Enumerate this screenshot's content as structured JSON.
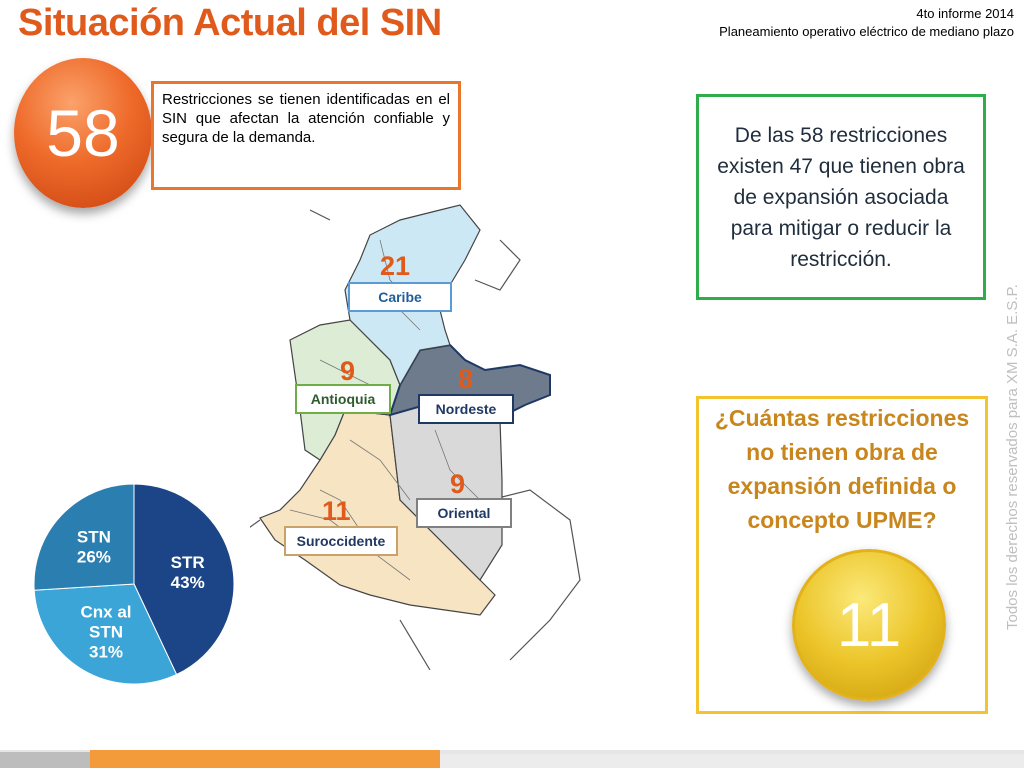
{
  "header": {
    "title": "Situación Actual del SIN",
    "line1": "4to informe 2014",
    "line2": "Planeamiento operativo eléctrico de mediano plazo"
  },
  "restrictions": {
    "count": "58",
    "description": "Restricciones se tienen identificadas en el SIN que afectan la atención confiable y segura de la demanda."
  },
  "info_box": {
    "text": "De las 58 restricciones existen 47 que tienen obra de expansión asociada para mitigar o reducir la restricción."
  },
  "question_box": {
    "question": "¿Cuántas restricciones no tienen obra de expansión definida o concepto UPME?",
    "answer": "11"
  },
  "side_note": "Todos los derechos reservados para XM S.A. E.S.P.",
  "regions": [
    {
      "name": "Caribe",
      "count": "21",
      "color": "#cde8f5",
      "border": "#5b9bd5"
    },
    {
      "name": "Antioquia",
      "count": "9",
      "color": "#dcecd5",
      "border": "#70ad47"
    },
    {
      "name": "Nordeste",
      "count": "8",
      "color": "#6d7b8d",
      "border": "#1f3864"
    },
    {
      "name": "Oriental",
      "count": "9",
      "color": "#d9d9d9",
      "border": "#808080"
    },
    {
      "name": "Suroccidente",
      "count": "11",
      "color": "#f6e4c3",
      "border": "#c9a26b"
    }
  ],
  "chart_data": {
    "type": "pie",
    "categories": [
      "STR",
      "Cnx al STN",
      "STN"
    ],
    "values": [
      43,
      31,
      26
    ],
    "labels": [
      "STR\n43%",
      "Cnx al\nSTN\n31%",
      "STN\n26%"
    ],
    "colors": [
      "#1c4587",
      "#3aa5d6",
      "#2b7eb0"
    ]
  },
  "colors": {
    "title": "#e05a1c",
    "orange_accent": "#e8762d",
    "green_accent": "#2eae4a",
    "yellow_accent": "#f4c430"
  }
}
